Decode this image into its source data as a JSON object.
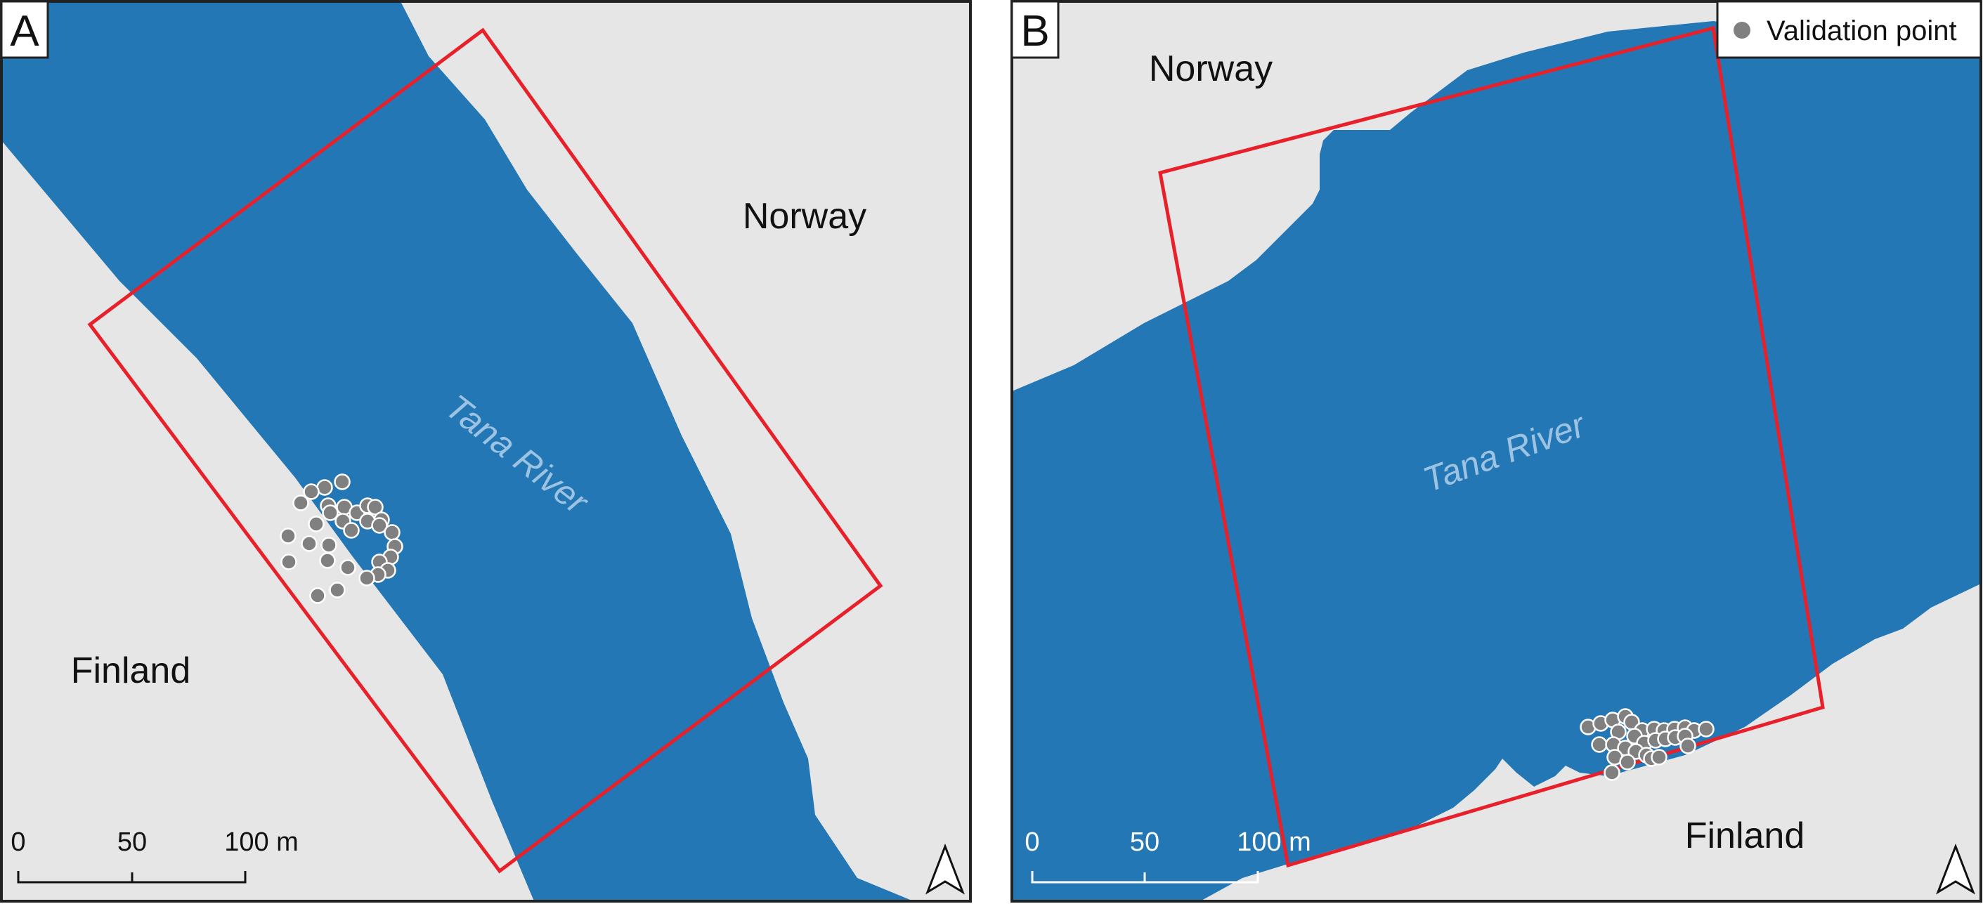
{
  "panels": [
    {
      "id": "A",
      "label": "A",
      "countries": [
        "Norway",
        "Finland"
      ],
      "river_label": "Tana River",
      "scalebar": {
        "ticks": [
          "0",
          "50",
          "100 m"
        ]
      }
    },
    {
      "id": "B",
      "label": "B",
      "countries": [
        "Norway",
        "Finland"
      ],
      "river_label": "Tana River",
      "scalebar": {
        "ticks": [
          "0",
          "50",
          "100 m"
        ]
      }
    }
  ],
  "legend": {
    "item": "Validation point"
  },
  "colors": {
    "land": "#e6e6e6",
    "water": "#2277b4",
    "boundary": "#e8202a",
    "point": "#808080",
    "river_label": "#9dc3e3"
  }
}
